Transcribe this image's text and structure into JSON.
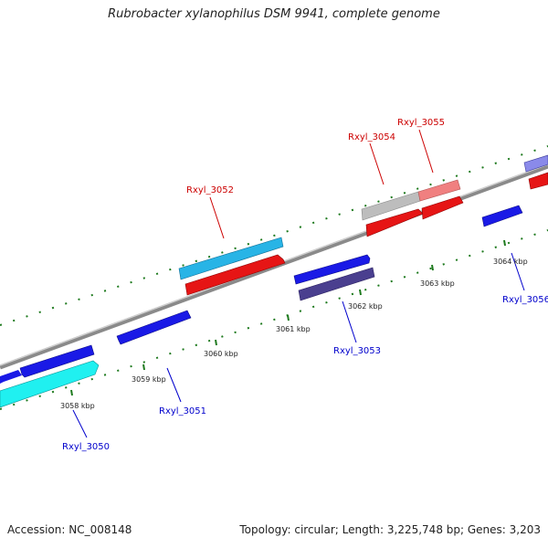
{
  "title": "Rubrobacter xylanophilus DSM 9941, complete genome",
  "footer": {
    "accession": "Accession: NC_008148",
    "summary": "Topology: circular; Length: 3,225,748 bp; Genes: 3,203"
  },
  "colors": {
    "plus_strand_gene": "#e61515",
    "minus_strand_gene": "#1a1ae6",
    "light_blue_gene": "#28b4e6",
    "cyan_gene": "#20f0f0",
    "dark_purple_gene": "#4a3f8f",
    "grey_gene": "#bdbdbd",
    "pink_gene": "#f08080",
    "genome_line": "#8a8a8a",
    "tick": "#1e7a1e",
    "plus_label": "#cc0000",
    "minus_label": "#0000cc"
  },
  "kbp_labels": [
    "3058 kbp",
    "3059 kbp",
    "3060 kbp",
    "3061 kbp",
    "3062 kbp",
    "3063 kbp",
    "3064 kbp"
  ],
  "gene_labels": {
    "plus": [
      "Rxyl_3052",
      "Rxyl_3054",
      "Rxyl_3055"
    ],
    "minus": [
      "Rxyl_3050",
      "Rxyl_3051",
      "Rxyl_3053",
      "Rxyl_3056"
    ]
  }
}
